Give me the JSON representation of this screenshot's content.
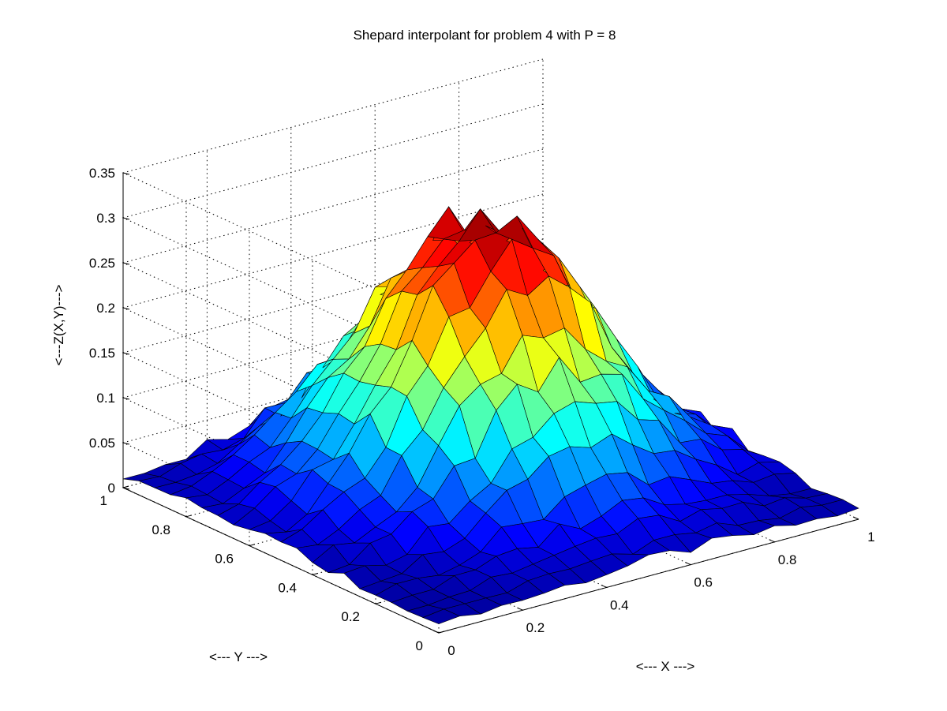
{
  "chart_data": {
    "type": "surface",
    "title": "Shepard interpolant for problem 4 with P = 8",
    "xlabel": "<--- X --->",
    "ylabel": "<--- Y --->",
    "zlabel": "<---Z(X,Y)--->",
    "xlim": [
      0,
      1
    ],
    "ylim": [
      0,
      1
    ],
    "zlim": [
      0,
      0.35
    ],
    "x_ticks": [
      "0",
      "0.2",
      "0.4",
      "0.6",
      "0.8",
      "1"
    ],
    "y_ticks": [
      "0",
      "0.2",
      "0.4",
      "0.6",
      "0.8",
      "1"
    ],
    "z_ticks": [
      "0",
      "0.05",
      "0.1",
      "0.15",
      "0.2",
      "0.25",
      "0.3",
      "0.35"
    ],
    "grid": true,
    "colormap": "jet",
    "grid_size": [
      21,
      21
    ],
    "surface_x": [
      0,
      0.05,
      0.1,
      0.15,
      0.2,
      0.25,
      0.3,
      0.35,
      0.4,
      0.45,
      0.5,
      0.55,
      0.6,
      0.65,
      0.7,
      0.75,
      0.8,
      0.85,
      0.9,
      0.95,
      1
    ],
    "surface_y": [
      0,
      0.05,
      0.1,
      0.15,
      0.2,
      0.25,
      0.3,
      0.35,
      0.4,
      0.45,
      0.5,
      0.55,
      0.6,
      0.65,
      0.7,
      0.75,
      0.8,
      0.85,
      0.9,
      0.95,
      1
    ],
    "surface_z_note": "peak ~0.30 near (0.55, 0.6); corner minima ~0.01-0.03; z value at (0,0) ~0.01",
    "peak_value": 0.3,
    "min_value": 0.01
  }
}
